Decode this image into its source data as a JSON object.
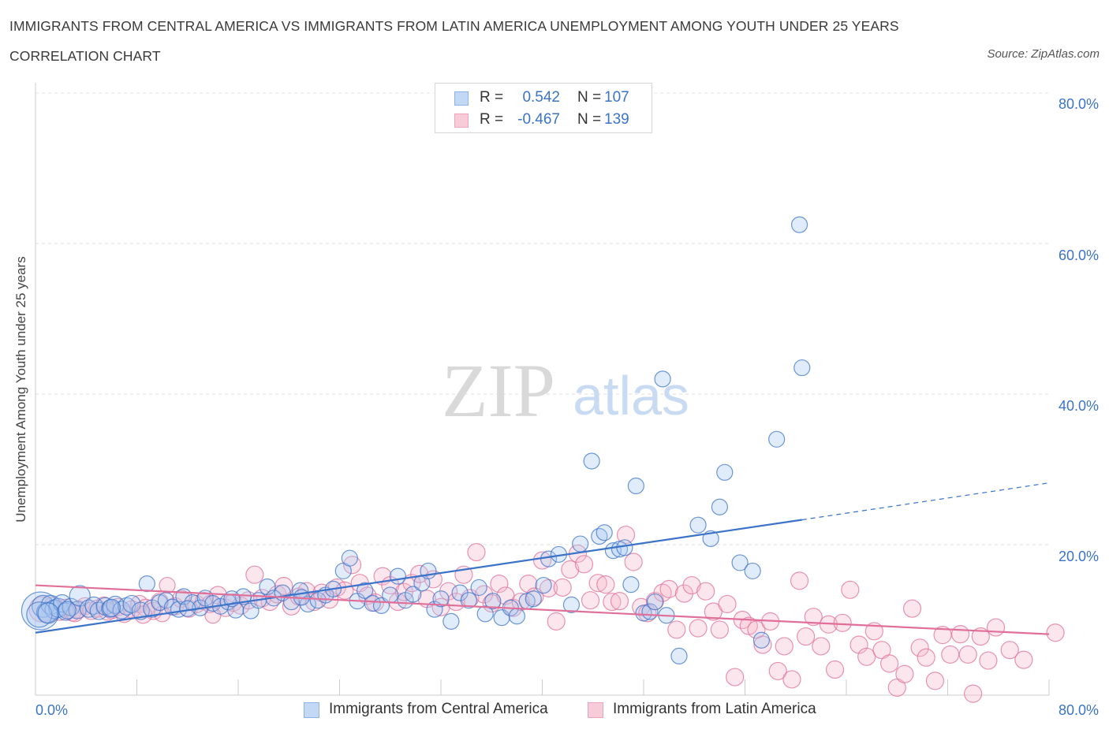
{
  "title": "IMMIGRANTS FROM CENTRAL AMERICA VS IMMIGRANTS FROM LATIN AMERICA UNEMPLOYMENT AMONG YOUTH UNDER 25 YEARS CORRELATION CHART",
  "source": "Source: ZipAtlas.com",
  "watermark": {
    "zip": "ZIP",
    "atlas": "atlas"
  },
  "legend": {
    "r_label": "R =",
    "n_label": "N =",
    "blue": {
      "r": "0.542",
      "n": "107"
    },
    "pink": {
      "r": "-0.467",
      "n": "139"
    }
  },
  "colors": {
    "blue": "#3b73c9",
    "blue_fill": "#aac8f2",
    "pink": "#e07099",
    "pink_fill": "#f5b8cc"
  },
  "chart_data": {
    "type": "scatter",
    "xlabel": "",
    "ylabel": "Unemployment Among Youth under 25 years",
    "xlim": [
      0,
      80
    ],
    "ylim": [
      0,
      80
    ],
    "x_tick_labels": [
      "0.0%",
      "80.0%"
    ],
    "y_tick_labels": [
      "20.0%",
      "40.0%",
      "60.0%",
      "80.0%"
    ],
    "y_tick_values": [
      20,
      40,
      60,
      80
    ],
    "grid": true,
    "legend_position": "top-center",
    "series": [
      {
        "name": "Immigrants from Central America",
        "color": "#3b73c9",
        "trend": {
          "x0": 0,
          "y0": 8.3,
          "x1": 60.5,
          "y1": 23.3,
          "dashed_to_x": 80,
          "dashed_to_y": 28.2
        },
        "points": [
          [
            0.4,
            11.2
          ],
          [
            0.6,
            11.8
          ],
          [
            0.9,
            11.0
          ],
          [
            1.2,
            12.0
          ],
          [
            1.5,
            11.4
          ],
          [
            1.8,
            11.6
          ],
          [
            2.1,
            12.2
          ],
          [
            2.4,
            11.1
          ],
          [
            2.8,
            11.7
          ],
          [
            3.3,
            11.3
          ],
          [
            3.5,
            13.2
          ],
          [
            4.2,
            11.5
          ],
          [
            4.6,
            11.9
          ],
          [
            5.0,
            11.2
          ],
          [
            5.5,
            11.8
          ],
          [
            5.9,
            11.5
          ],
          [
            6.3,
            12.0
          ],
          [
            6.8,
            11.3
          ],
          [
            7.2,
            11.8
          ],
          [
            7.6,
            12.1
          ],
          [
            8.3,
            11.2
          ],
          [
            8.8,
            14.8
          ],
          [
            9.2,
            11.5
          ],
          [
            9.8,
            12.3
          ],
          [
            10.3,
            12.6
          ],
          [
            10.8,
            11.7
          ],
          [
            11.3,
            11.4
          ],
          [
            11.7,
            13.1
          ],
          [
            12.4,
            12.3
          ],
          [
            13.0,
            11.6
          ],
          [
            13.4,
            12.9
          ],
          [
            14.0,
            12.2
          ],
          [
            14.6,
            11.8
          ],
          [
            15.2,
            12.4
          ],
          [
            15.8,
            11.3
          ],
          [
            16.4,
            13.1
          ],
          [
            17.0,
            11.2
          ],
          [
            17.6,
            12.6
          ],
          [
            18.3,
            14.4
          ],
          [
            18.8,
            12.9
          ],
          [
            19.5,
            13.6
          ],
          [
            20.2,
            12.4
          ],
          [
            20.9,
            13.9
          ],
          [
            21.5,
            12.1
          ],
          [
            22.3,
            12.6
          ],
          [
            22.9,
            13.3
          ],
          [
            23.5,
            14.1
          ],
          [
            24.3,
            16.5
          ],
          [
            24.8,
            18.2
          ],
          [
            25.4,
            12.5
          ],
          [
            26.0,
            13.9
          ],
          [
            26.6,
            12.2
          ],
          [
            27.3,
            11.9
          ],
          [
            28.0,
            13.3
          ],
          [
            28.6,
            15.8
          ],
          [
            29.2,
            12.6
          ],
          [
            29.8,
            13.4
          ],
          [
            30.5,
            14.9
          ],
          [
            31.0,
            16.5
          ],
          [
            31.5,
            11.4
          ],
          [
            32.0,
            12.8
          ],
          [
            32.8,
            9.8
          ],
          [
            33.5,
            13.6
          ],
          [
            34.2,
            12.6
          ],
          [
            35.0,
            14.3
          ],
          [
            35.5,
            10.8
          ],
          [
            36.1,
            12.5
          ],
          [
            36.8,
            10.3
          ],
          [
            37.5,
            11.6
          ],
          [
            38.0,
            10.5
          ],
          [
            38.8,
            12.5
          ],
          [
            39.3,
            12.8
          ],
          [
            40.1,
            14.6
          ],
          [
            40.5,
            18.1
          ],
          [
            41.3,
            18.7
          ],
          [
            42.3,
            12.0
          ],
          [
            43.0,
            20.1
          ],
          [
            43.9,
            31.1
          ],
          [
            44.5,
            21.1
          ],
          [
            44.9,
            21.6
          ],
          [
            45.6,
            19.2
          ],
          [
            46.1,
            19.4
          ],
          [
            46.5,
            19.6
          ],
          [
            47.0,
            14.7
          ],
          [
            47.4,
            27.8
          ],
          [
            48.0,
            10.9
          ],
          [
            48.5,
            11.1
          ],
          [
            48.9,
            12.4
          ],
          [
            49.5,
            42.0
          ],
          [
            49.8,
            10.6
          ],
          [
            50.8,
            5.2
          ],
          [
            52.3,
            22.6
          ],
          [
            53.3,
            20.8
          ],
          [
            54.0,
            25.0
          ],
          [
            54.4,
            29.6
          ],
          [
            55.6,
            17.6
          ],
          [
            56.6,
            16.5
          ],
          [
            57.3,
            7.3
          ],
          [
            58.5,
            34.0
          ],
          [
            60.3,
            62.5
          ],
          [
            60.5,
            43.5
          ],
          [
            0.3,
            10.7
          ],
          [
            1.0,
            10.9
          ],
          [
            2.5,
            11.3
          ],
          [
            6.0,
            11.6
          ],
          [
            12.0,
            11.5
          ],
          [
            15.5,
            12.8
          ],
          [
            21.0,
            13.0
          ]
        ],
        "sizes": [
          24,
          14,
          13,
          12,
          12,
          12,
          11,
          11,
          11,
          11,
          13,
          11,
          11,
          11,
          11,
          11,
          11,
          11,
          11,
          11,
          11,
          10,
          11,
          10,
          10,
          10,
          10,
          10,
          10,
          10,
          10,
          10,
          10,
          10,
          10,
          10,
          10,
          10,
          10,
          10,
          10,
          10,
          10,
          10,
          10,
          10,
          10,
          10,
          10,
          10,
          10,
          10,
          10,
          10,
          10,
          10,
          10,
          10,
          10,
          10,
          10,
          10,
          10,
          10,
          10,
          10,
          10,
          10,
          10,
          10,
          10,
          10,
          10,
          10,
          10,
          10,
          10,
          10,
          10,
          10,
          10,
          10,
          10,
          10,
          10,
          10,
          10,
          10,
          10,
          10,
          10,
          10,
          10,
          10,
          10,
          10,
          10,
          10,
          10,
          10,
          10,
          16,
          13,
          11,
          11,
          10,
          10,
          10
        ]
      },
      {
        "name": "Immigrants from Latin America",
        "color": "#e07099",
        "trend": {
          "x0": 0,
          "y0": 14.6,
          "x1": 80,
          "y1": 8.1
        },
        "points": [
          [
            0.5,
            11.4
          ],
          [
            1.0,
            11.0
          ],
          [
            1.4,
            11.8
          ],
          [
            1.9,
            11.2
          ],
          [
            2.4,
            11.6
          ],
          [
            2.9,
            11.0
          ],
          [
            3.4,
            11.4
          ],
          [
            3.9,
            11.8
          ],
          [
            4.4,
            11.2
          ],
          [
            4.9,
            11.5
          ],
          [
            5.4,
            11.9
          ],
          [
            6.0,
            11.3
          ],
          [
            6.5,
            11.7
          ],
          [
            7.0,
            10.8
          ],
          [
            7.6,
            11.4
          ],
          [
            8.2,
            12.1
          ],
          [
            8.7,
            11.6
          ],
          [
            9.3,
            11.2
          ],
          [
            9.8,
            12.4
          ],
          [
            10.4,
            14.6
          ],
          [
            11.0,
            11.8
          ],
          [
            11.5,
            12.8
          ],
          [
            12.1,
            11.5
          ],
          [
            12.7,
            12.1
          ],
          [
            13.3,
            12.5
          ],
          [
            13.8,
            12.1
          ],
          [
            14.4,
            13.3
          ],
          [
            15.0,
            11.6
          ],
          [
            15.6,
            12.3
          ],
          [
            16.2,
            11.9
          ],
          [
            16.8,
            12.6
          ],
          [
            17.3,
            16.0
          ],
          [
            17.9,
            12.9
          ],
          [
            18.5,
            12.4
          ],
          [
            19.1,
            13.4
          ],
          [
            19.6,
            14.5
          ],
          [
            20.2,
            11.8
          ],
          [
            20.8,
            13.1
          ],
          [
            21.4,
            13.8
          ],
          [
            22.0,
            12.4
          ],
          [
            22.6,
            13.6
          ],
          [
            23.2,
            12.7
          ],
          [
            23.8,
            14.3
          ],
          [
            24.4,
            13.9
          ],
          [
            25.0,
            17.3
          ],
          [
            25.6,
            14.9
          ],
          [
            26.2,
            13.2
          ],
          [
            26.8,
            12.3
          ],
          [
            27.4,
            15.8
          ],
          [
            28.0,
            14.6
          ],
          [
            28.6,
            12.4
          ],
          [
            29.1,
            13.7
          ],
          [
            29.7,
            14.9
          ],
          [
            30.3,
            16.1
          ],
          [
            30.9,
            12.8
          ],
          [
            31.4,
            15.4
          ],
          [
            32.0,
            11.7
          ],
          [
            32.6,
            13.8
          ],
          [
            33.2,
            12.4
          ],
          [
            33.8,
            16.0
          ],
          [
            34.3,
            12.9
          ],
          [
            34.8,
            19.0
          ],
          [
            35.4,
            13.4
          ],
          [
            36.0,
            12.2
          ],
          [
            36.6,
            14.8
          ],
          [
            37.1,
            13.2
          ],
          [
            37.7,
            11.6
          ],
          [
            38.3,
            12.4
          ],
          [
            38.9,
            14.8
          ],
          [
            39.4,
            13.1
          ],
          [
            40.0,
            17.9
          ],
          [
            40.5,
            14.2
          ],
          [
            41.1,
            9.8
          ],
          [
            41.6,
            14.3
          ],
          [
            42.2,
            16.7
          ],
          [
            42.8,
            18.8
          ],
          [
            43.3,
            17.4
          ],
          [
            43.8,
            12.6
          ],
          [
            44.4,
            14.9
          ],
          [
            45.0,
            14.7
          ],
          [
            45.5,
            12.4
          ],
          [
            46.1,
            12.5
          ],
          [
            46.6,
            21.3
          ],
          [
            47.2,
            17.7
          ],
          [
            47.8,
            11.7
          ],
          [
            48.3,
            10.9
          ],
          [
            48.9,
            12.5
          ],
          [
            49.5,
            13.6
          ],
          [
            50.0,
            14.1
          ],
          [
            50.6,
            8.7
          ],
          [
            51.2,
            13.5
          ],
          [
            51.8,
            14.6
          ],
          [
            52.3,
            8.9
          ],
          [
            52.9,
            13.8
          ],
          [
            53.5,
            11.1
          ],
          [
            54.0,
            8.7
          ],
          [
            54.6,
            12.1
          ],
          [
            55.2,
            2.4
          ],
          [
            55.8,
            10.0
          ],
          [
            56.3,
            9.2
          ],
          [
            56.9,
            8.7
          ],
          [
            57.4,
            6.7
          ],
          [
            58.0,
            9.8
          ],
          [
            58.6,
            3.2
          ],
          [
            59.1,
            6.5
          ],
          [
            59.7,
            2.1
          ],
          [
            60.3,
            15.2
          ],
          [
            60.8,
            7.8
          ],
          [
            61.4,
            10.4
          ],
          [
            62.0,
            6.5
          ],
          [
            62.6,
            9.4
          ],
          [
            63.1,
            3.4
          ],
          [
            63.7,
            9.6
          ],
          [
            64.3,
            14.0
          ],
          [
            65.0,
            6.7
          ],
          [
            65.6,
            5.1
          ],
          [
            66.2,
            8.5
          ],
          [
            66.8,
            6.0
          ],
          [
            67.4,
            4.2
          ],
          [
            68.0,
            1.0
          ],
          [
            68.6,
            2.8
          ],
          [
            69.2,
            11.5
          ],
          [
            69.8,
            6.3
          ],
          [
            70.3,
            5.0
          ],
          [
            71.0,
            1.9
          ],
          [
            71.6,
            8.0
          ],
          [
            72.2,
            5.4
          ],
          [
            73.0,
            8.1
          ],
          [
            73.6,
            5.4
          ],
          [
            74.0,
            0.2
          ],
          [
            74.6,
            7.8
          ],
          [
            75.2,
            4.6
          ],
          [
            75.8,
            9.0
          ],
          [
            76.9,
            6.0
          ],
          [
            78.0,
            4.7
          ],
          [
            80.5,
            8.3
          ],
          [
            3.1,
            10.9
          ],
          [
            5.7,
            11.1
          ],
          [
            8.5,
            10.7
          ],
          [
            10.0,
            10.8
          ],
          [
            14.0,
            10.6
          ]
        ],
        "sizes": [
          16,
          13,
          12,
          12,
          11,
          11,
          11,
          11,
          11,
          11,
          11,
          11,
          11,
          11,
          11,
          11,
          11,
          11,
          11,
          10,
          11,
          11,
          11,
          11,
          11,
          11,
          11,
          11,
          11,
          11,
          11,
          11,
          11,
          11,
          11,
          11,
          11,
          11,
          11,
          11,
          11,
          11,
          11,
          11,
          11,
          11,
          11,
          11,
          11,
          11,
          11,
          11,
          11,
          11,
          11,
          11,
          11,
          11,
          11,
          11,
          11,
          11,
          11,
          11,
          11,
          11,
          11,
          11,
          11,
          11,
          11,
          11,
          11,
          11,
          11,
          11,
          11,
          11,
          11,
          11,
          11,
          11,
          11,
          11,
          11,
          11,
          11,
          11,
          11,
          11,
          11,
          11,
          11,
          11,
          11,
          11,
          11,
          11,
          11,
          11,
          11,
          11,
          11,
          11,
          11,
          11,
          11,
          11,
          11,
          11,
          11,
          11,
          11,
          11,
          11,
          11,
          11,
          11,
          11,
          11,
          11,
          11,
          11,
          11,
          11,
          11,
          11,
          11,
          11,
          11,
          11,
          11,
          11,
          11,
          11,
          11,
          11,
          11,
          11
        ]
      }
    ]
  }
}
